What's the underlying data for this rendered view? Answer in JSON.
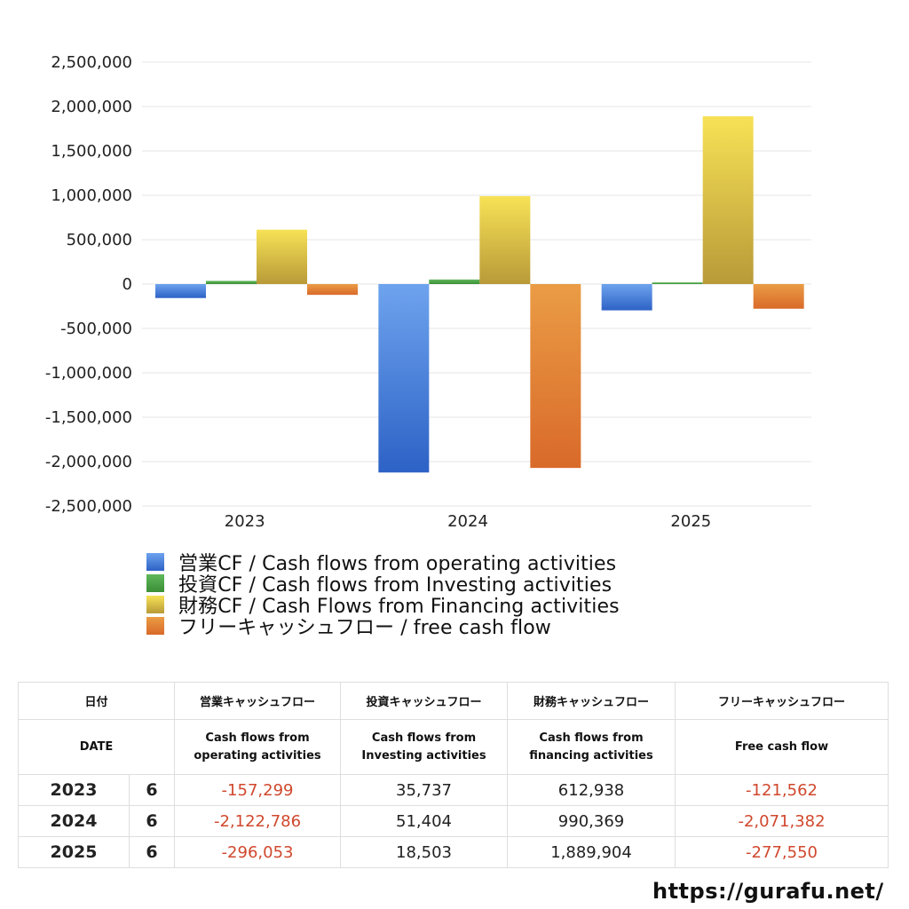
{
  "chart_data": {
    "type": "bar",
    "categories": [
      "2023",
      "2024",
      "2025"
    ],
    "ylim": [
      -2500000,
      2500000
    ],
    "yticks": [
      "2,500,000",
      "2,000,000",
      "1,500,000",
      "1,000,000",
      "500,000",
      "0",
      "-500,000",
      "-1,000,000",
      "-1,500,000",
      "-2,000,000",
      "-2,500,000"
    ],
    "ytick_values": [
      2500000,
      2000000,
      1500000,
      1000000,
      500000,
      0,
      -500000,
      -1000000,
      -1500000,
      -2000000,
      -2500000
    ],
    "grid": true,
    "legend_position": "bottom",
    "series": [
      {
        "name": "営業CF / Cash flows from operating activities",
        "values": [
          -157299,
          -2122786,
          -296053
        ],
        "color_top": "#6ea3ee",
        "color_bottom": "#2d62c6"
      },
      {
        "name": "投資CF / Cash flows from Investing activities",
        "values": [
          35737,
          51404,
          18503
        ],
        "color_top": "#5fb85a",
        "color_bottom": "#3b8f37"
      },
      {
        "name": "財務CF / Cash Flows from Financing activities",
        "values": [
          612938,
          990369,
          1889904
        ],
        "color_top": "#f7e256",
        "color_bottom": "#b89a38"
      },
      {
        "name": "フリーキャッシュフロー / free cash flow",
        "values": [
          -121562,
          -2071382,
          -277550
        ],
        "color_top": "#ea9c45",
        "color_bottom": "#d96a2a"
      }
    ]
  },
  "table": {
    "header_ja": [
      "日付",
      "営業キャッシュフロー",
      "投資キャッシュフロー",
      "財務キャッシュフロー",
      "フリーキャッシュフロー"
    ],
    "header_en": {
      "date": "DATE",
      "operating": [
        "Cash flows from",
        "operating activities"
      ],
      "investing": [
        "Cash flows from",
        "Investing activities"
      ],
      "financing": [
        "Cash flows from",
        "financing activities"
      ],
      "free": "Free cash flow"
    },
    "rows": [
      {
        "year": "2023",
        "month": "6",
        "operating": "-157,299",
        "investing": "35,737",
        "financing": "612,938",
        "free": "-121,562"
      },
      {
        "year": "2024",
        "month": "6",
        "operating": "-2,122,786",
        "investing": "51,404",
        "financing": "990,369",
        "free": "-2,071,382"
      },
      {
        "year": "2025",
        "month": "6",
        "operating": "-296,053",
        "investing": "18,503",
        "financing": "1,889,904",
        "free": "-277,550"
      }
    ],
    "negative_color": "#d0482d"
  },
  "footer": {
    "url": "https://gurafu.net/"
  }
}
